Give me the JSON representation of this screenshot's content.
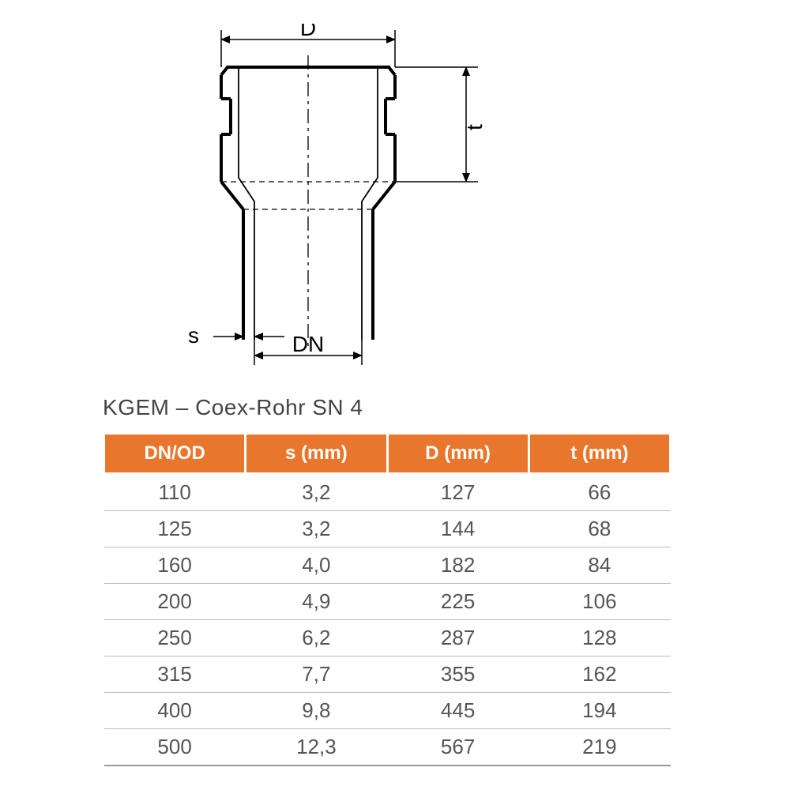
{
  "diagram": {
    "labels": {
      "D": "D",
      "t": "t",
      "s": "s",
      "DN": "DN"
    },
    "line_color": "#000000",
    "line_width_main": 3.5,
    "line_width_dim": 1.5,
    "dim_font_size": 28
  },
  "table": {
    "title": "KGEM – Coex-Rohr SN 4",
    "title_color": "#444444",
    "title_fontsize": 28,
    "header_bg": "#e8762c",
    "header_fg": "#ffffff",
    "header_fontsize": 24,
    "cell_color": "#555555",
    "cell_fontsize": 26,
    "border_color": "#bbbbbb",
    "columns": [
      "DN/OD",
      "s (mm)",
      "D (mm)",
      "t (mm)"
    ],
    "column_widths": [
      "25%",
      "25%",
      "25%",
      "25%"
    ],
    "rows": [
      [
        "110",
        "3,2",
        "127",
        "66"
      ],
      [
        "125",
        "3,2",
        "144",
        "68"
      ],
      [
        "160",
        "4,0",
        "182",
        "84"
      ],
      [
        "200",
        "4,9",
        "225",
        "106"
      ],
      [
        "250",
        "6,2",
        "287",
        "128"
      ],
      [
        "315",
        "7,7",
        "355",
        "162"
      ],
      [
        "400",
        "9,8",
        "445",
        "194"
      ],
      [
        "500",
        "12,3",
        "567",
        "219"
      ]
    ]
  }
}
